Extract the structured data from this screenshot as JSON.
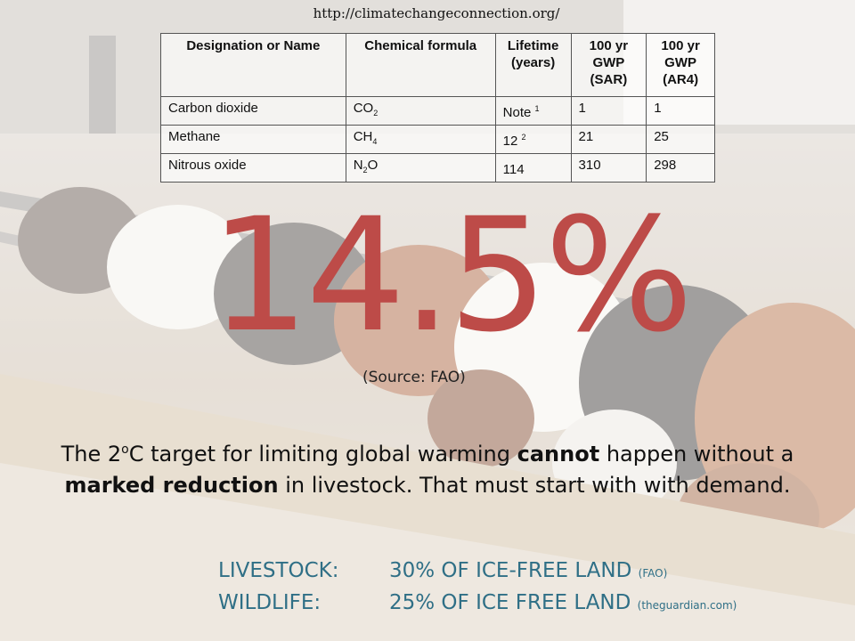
{
  "source_url": "http://climatechangeconnection.org/",
  "table": {
    "headers": [
      "Designation or Name",
      "Chemical formula",
      "Lifetime (years)",
      "100 yr GWP (SAR)",
      "100 yr GWP (AR4)"
    ],
    "rows": [
      {
        "name": "Carbon dioxide",
        "formula_base": "CO",
        "formula_sub": "2",
        "formula_tail": "",
        "lifetime": "Note",
        "lifetime_sup": "1",
        "gwp_sar": "1",
        "gwp_ar4": "1"
      },
      {
        "name": "Methane",
        "formula_base": "CH",
        "formula_sub": "4",
        "formula_tail": "",
        "lifetime": "12",
        "lifetime_sup": "2",
        "gwp_sar": "21",
        "gwp_ar4": "25"
      },
      {
        "name": "Nitrous oxide",
        "formula_base": "N",
        "formula_sub": "2",
        "formula_tail": "O",
        "lifetime": "114",
        "lifetime_sup": "",
        "gwp_sar": "310",
        "gwp_ar4": "298"
      }
    ]
  },
  "headline_value": "14.5%",
  "headline_source": "(Source:  FAO)",
  "paragraph": {
    "p1": "The 2",
    "sup": "o",
    "p2": "C target for limiting global warming ",
    "b1": "cannot",
    "p3": " happen without a ",
    "b2": "marked reduction",
    "p4": " in livestock.  That must start with with demand."
  },
  "stats": [
    {
      "label": "LIVESTOCK:",
      "value": "30% OF ICE-FREE LAND",
      "source": "(FAO)"
    },
    {
      "label": "WILDLIFE:",
      "value": "25% OF ICE FREE LAND",
      "source": "(theguardian.com)"
    }
  ],
  "colors": {
    "headline": "#bd4b48",
    "stats": "#2f6f86"
  }
}
